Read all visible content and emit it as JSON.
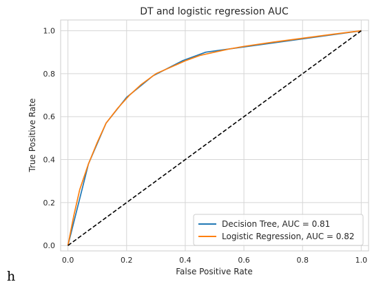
{
  "stray_text": "h",
  "chart_data": {
    "type": "line",
    "title": "DT and logistic regression AUC",
    "xlabel": "False Positive Rate",
    "ylabel": "True Positive Rate",
    "xlim": [
      -0.025,
      1.025
    ],
    "ylim": [
      -0.025,
      1.05
    ],
    "xticks": [
      "0.0",
      "0.2",
      "0.4",
      "0.6",
      "0.8",
      "1.0"
    ],
    "yticks": [
      "0.0",
      "0.2",
      "0.4",
      "0.6",
      "0.8",
      "1.0"
    ],
    "grid": true,
    "legend_position": "lower-right",
    "series": [
      {
        "name": "Decision Tree, AUC = 0.81",
        "color": "#1f77b4",
        "style": "solid",
        "x": [
          0.0,
          0.07,
          0.13,
          0.2,
          0.29,
          0.39,
          0.47,
          1.0
        ],
        "y": [
          0.0,
          0.38,
          0.57,
          0.69,
          0.79,
          0.86,
          0.9,
          1.0
        ]
      },
      {
        "name": "Logistic Regression, AUC = 0.82",
        "color": "#ff7f0e",
        "style": "solid",
        "x": [
          0.0,
          0.02,
          0.04,
          0.07,
          0.1,
          0.13,
          0.17,
          0.21,
          0.25,
          0.3,
          0.35,
          0.4,
          0.45,
          0.5,
          0.55,
          0.6,
          0.7,
          0.8,
          0.9,
          1.0
        ],
        "y": [
          0.0,
          0.14,
          0.26,
          0.38,
          0.48,
          0.57,
          0.64,
          0.7,
          0.75,
          0.8,
          0.83,
          0.86,
          0.885,
          0.9,
          0.915,
          0.927,
          0.947,
          0.965,
          0.983,
          1.0
        ]
      },
      {
        "name": "",
        "color": "#000000",
        "style": "dashed",
        "x": [
          0.0,
          1.0
        ],
        "y": [
          0.0,
          1.0
        ]
      }
    ]
  }
}
